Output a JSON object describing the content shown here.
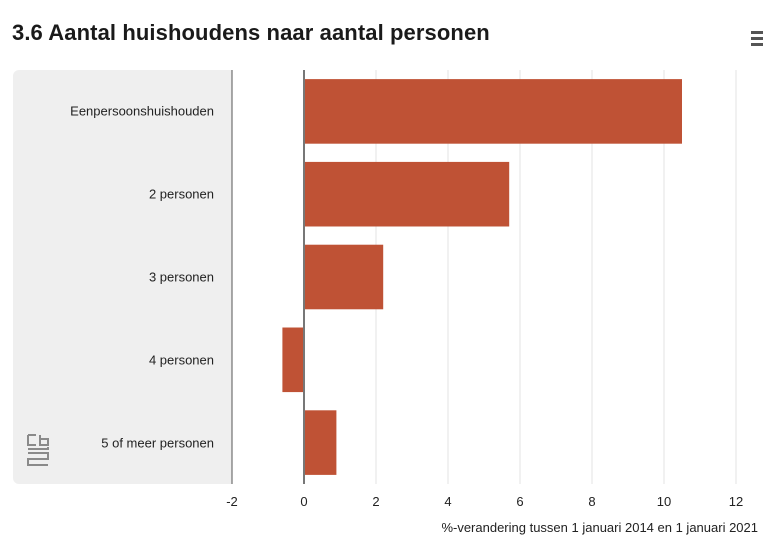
{
  "header": {
    "title": "3.6 Aantal huishoudens naar aantal personen",
    "menu_icon": "hamburger-menu-icon"
  },
  "logo": {
    "icon": "cbs-logo-icon"
  },
  "colors": {
    "bar": "#bf5235",
    "grid": "#e3e3e3",
    "zero_line": "#777777",
    "panel": "#efefef"
  },
  "chart_data": {
    "type": "bar",
    "orientation": "horizontal",
    "title": "3.6 Aantal huishoudens naar aantal personen",
    "categories": [
      "Eenpersoonshuishouden",
      "2 personen",
      "3 personen",
      "4 personen",
      "5 of meer personen"
    ],
    "values": [
      10.5,
      5.7,
      2.2,
      -0.6,
      0.9
    ],
    "xlabel": "%-verandering tussen 1 januari 2014 en 1 januari 2021",
    "ylabel": "",
    "xlim": [
      -2,
      12
    ],
    "xticks": [
      "-2",
      "0",
      "2",
      "4",
      "6",
      "8",
      "10",
      "12"
    ],
    "grid": true
  }
}
